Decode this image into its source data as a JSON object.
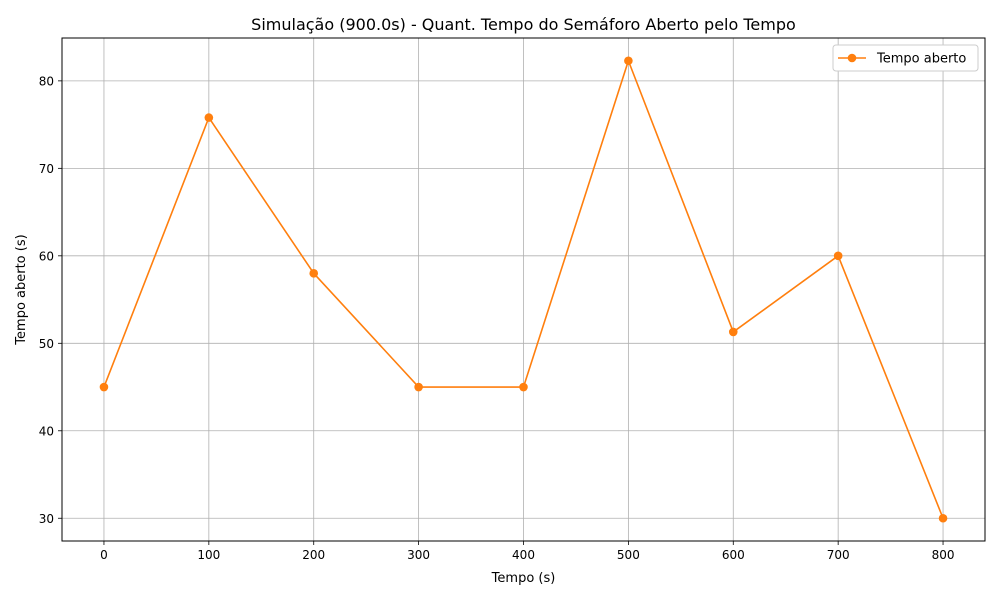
{
  "chart_data": {
    "type": "line",
    "title": "Simulação (900.0s) - Quant. Tempo do Semáforo Aberto pelo Tempo",
    "xlabel": "Tempo (s)",
    "ylabel": "Tempo aberto (s)",
    "xlim": [
      -40,
      840
    ],
    "ylim": [
      27.4,
      84.9
    ],
    "xticks": [
      0,
      100,
      200,
      300,
      400,
      500,
      600,
      700,
      800
    ],
    "yticks": [
      30,
      40,
      50,
      60,
      70,
      80
    ],
    "grid": true,
    "legend_position": "top-right",
    "series": [
      {
        "name": "Tempo aberto",
        "color": "#ff7f0e",
        "marker": "circle",
        "x": [
          0,
          100,
          200,
          300,
          400,
          500,
          600,
          700,
          800
        ],
        "y": [
          45.0,
          75.8,
          58.0,
          45.0,
          45.0,
          82.3,
          51.3,
          60.0,
          30.0
        ]
      }
    ]
  }
}
